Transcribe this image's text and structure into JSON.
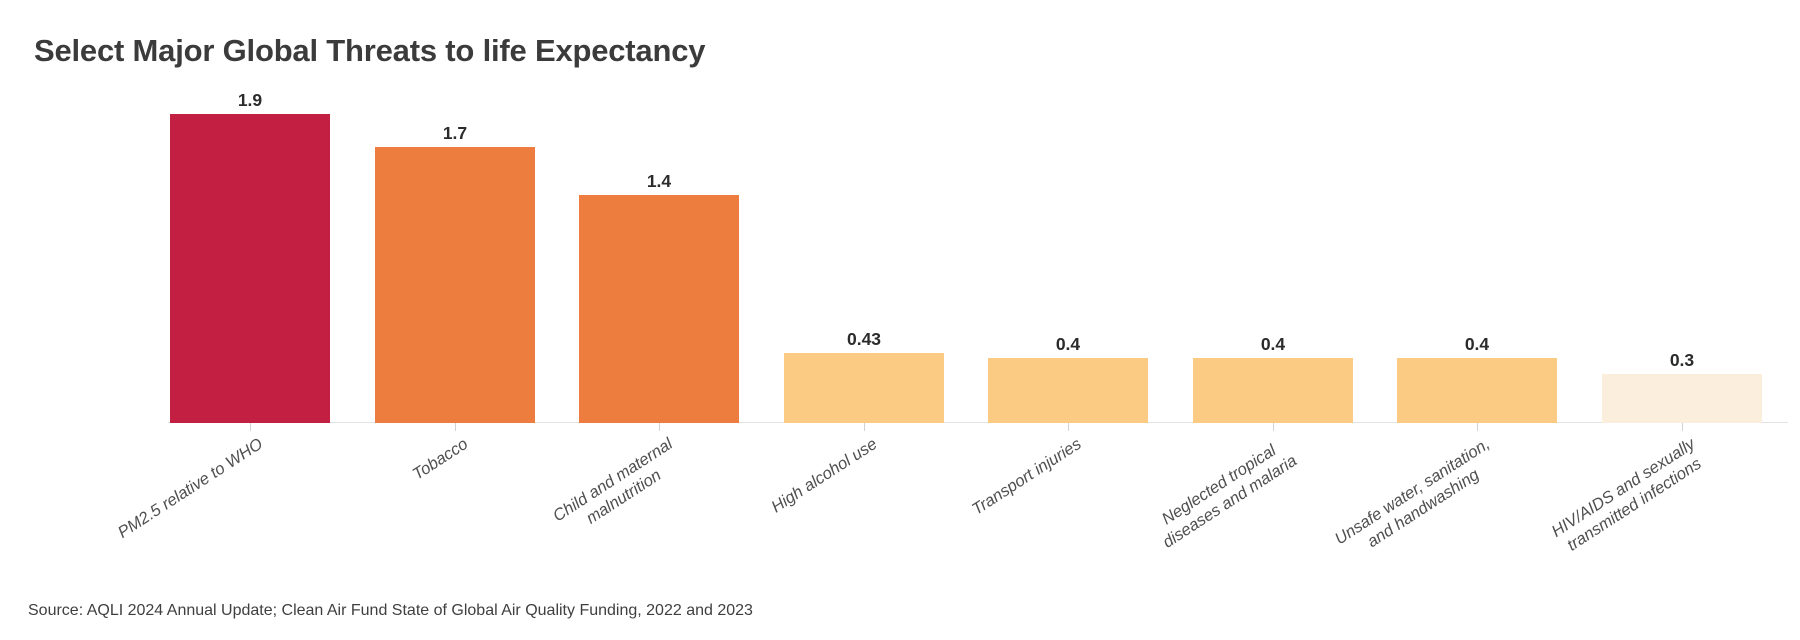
{
  "title": "Select Major Global Threats to life Expectancy",
  "source": "Source: AQLI 2024 Annual Update; Clean Air Fund State of Global Air Quality Funding, 2022 and 2023",
  "chart_data": {
    "type": "bar",
    "title": "Select Major Global Threats to life Expectancy",
    "categories": [
      "PM2.5 relative to WHO",
      "Tobacco",
      "Child and maternal\nmalnutrition",
      "High alcohol use",
      "Transport injuries",
      "Neglected tropical\ndiseases and malaria",
      "Unsafe water, sanitation,\nand handwashing",
      "HIV/AIDS and sexually\ntransmitted infections"
    ],
    "values": [
      1.9,
      1.7,
      1.4,
      0.43,
      0.4,
      0.4,
      0.4,
      0.3
    ],
    "value_labels": [
      "1.9",
      "1.7",
      "1.4",
      "0.43",
      "0.4",
      "0.4",
      "0.4",
      "0.3"
    ],
    "bar_colors": [
      "#C21F42",
      "#EC7D3E",
      "#EC7D3E",
      "#FBCB84",
      "#FBCB84",
      "#FBCB84",
      "#FBCB84",
      "#FCEEDC"
    ],
    "xlabel": "",
    "ylabel": "",
    "ylim": [
      0,
      2.05
    ],
    "y_axis_visible": false,
    "grid": false,
    "legend_position": "none",
    "value_labels_shown": true
  }
}
